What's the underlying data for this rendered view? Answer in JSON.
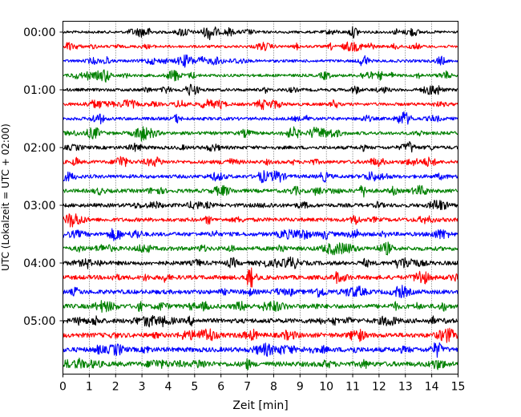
{
  "chart_data": {
    "type": "line",
    "title": "",
    "xlabel": "Zeit  [min]",
    "ylabel": "UTC (Lokalzeit = UTC + 02:00)",
    "xlim": [
      0,
      15
    ],
    "x_ticks": [
      "0",
      "1",
      "2",
      "3",
      "4",
      "5",
      "6",
      "7",
      "8",
      "9",
      "10",
      "11",
      "12",
      "13",
      "14",
      "15"
    ],
    "y_ticks": [
      "00:00",
      "01:00",
      "02:00",
      "03:00",
      "04:00",
      "05:00"
    ],
    "grid": "vertical-dotted",
    "legend": "none",
    "trace_interval_min": 15,
    "trace_colors": [
      "#000000",
      "#ff0000",
      "#0000ff",
      "#008000"
    ],
    "traces": [
      {
        "start": "00:00",
        "color": "#000000"
      },
      {
        "start": "00:15",
        "color": "#ff0000"
      },
      {
        "start": "00:30",
        "color": "#0000ff"
      },
      {
        "start": "00:45",
        "color": "#008000"
      },
      {
        "start": "01:00",
        "color": "#000000"
      },
      {
        "start": "01:15",
        "color": "#ff0000"
      },
      {
        "start": "01:30",
        "color": "#0000ff"
      },
      {
        "start": "01:45",
        "color": "#008000"
      },
      {
        "start": "02:00",
        "color": "#000000"
      },
      {
        "start": "02:15",
        "color": "#ff0000"
      },
      {
        "start": "02:30",
        "color": "#0000ff"
      },
      {
        "start": "02:45",
        "color": "#008000"
      },
      {
        "start": "03:00",
        "color": "#000000"
      },
      {
        "start": "03:15",
        "color": "#ff0000"
      },
      {
        "start": "03:30",
        "color": "#0000ff"
      },
      {
        "start": "03:45",
        "color": "#008000"
      },
      {
        "start": "04:00",
        "color": "#000000"
      },
      {
        "start": "04:15",
        "color": "#ff0000"
      },
      {
        "start": "04:30",
        "color": "#0000ff"
      },
      {
        "start": "04:45",
        "color": "#008000"
      },
      {
        "start": "05:00",
        "color": "#000000"
      },
      {
        "start": "05:15",
        "color": "#ff0000"
      },
      {
        "start": "05:30",
        "color": "#0000ff"
      },
      {
        "start": "05:45",
        "color": "#008000"
      }
    ],
    "events": [
      {
        "trace": "04:15",
        "x_min": 7.15
      }
    ]
  }
}
